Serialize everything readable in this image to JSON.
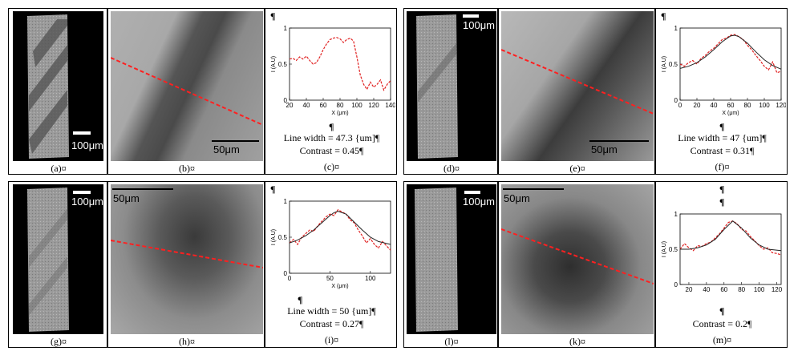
{
  "panels": {
    "a": {
      "caption": "(a)¤",
      "scale": "100μm"
    },
    "b": {
      "caption": "(b)¤",
      "scale": "50μm"
    },
    "c": {
      "caption": "(c)¤",
      "pilcrow1": "¶",
      "pilcrow2": "¶",
      "line1": "Line width = 47.3 {um]¶",
      "line2": "Contrast = 0.45¶"
    },
    "d": {
      "caption": "(d)¤",
      "scale": "100μm"
    },
    "e": {
      "caption": "(e)¤",
      "scale": "50μm"
    },
    "f": {
      "caption": "(f)¤",
      "pilcrow1": "¶",
      "pilcrow2": "¶",
      "line1": "Line width = 47 {um]¶",
      "line2": "Contrast = 0.31¶"
    },
    "g": {
      "caption": "(g)¤",
      "scale": "100μm"
    },
    "h": {
      "caption": "(h)¤",
      "scale": "50μm"
    },
    "i": {
      "caption": "(i)¤",
      "pilcrow1": "¶",
      "pilcrow2": "¶",
      "line1": "Line width = 50 {um]¶",
      "line2": "Contrast = 0.27¶"
    },
    "l": {
      "caption": "(l)¤",
      "scale": "100μm"
    },
    "k": {
      "caption": "(k)¤",
      "scale": "50μm"
    },
    "m": {
      "caption": "(m)¤",
      "pilcrow1": "¶",
      "pilcrow2": "¶",
      "pilcrow3": "¶",
      "line2": "Contrast = 0.2¶"
    }
  },
  "colors": {
    "profile": "#e02020",
    "fit": "#222222",
    "dash": "#ff2020"
  },
  "chart_data": [
    {
      "type": "line",
      "panel": "c",
      "xlabel": "X (μm)",
      "ylabel": "I (A.U)",
      "xticks": [
        20,
        40,
        60,
        80,
        100,
        120,
        140
      ],
      "yticks": [
        0,
        0.5,
        1
      ],
      "xlim": [
        20,
        140
      ],
      "ylim": [
        0,
        1
      ],
      "series": [
        {
          "values_x": [
            20,
            24,
            28,
            32,
            36,
            40,
            44,
            48,
            52,
            56,
            60,
            64,
            68,
            72,
            76,
            80,
            84,
            88,
            92,
            96,
            100,
            104,
            108,
            112,
            116,
            120,
            124,
            128,
            132,
            136,
            140
          ],
          "values_y": [
            0.57,
            0.58,
            0.55,
            0.6,
            0.57,
            0.61,
            0.55,
            0.5,
            0.52,
            0.6,
            0.7,
            0.78,
            0.84,
            0.86,
            0.87,
            0.85,
            0.8,
            0.84,
            0.86,
            0.82,
            0.6,
            0.35,
            0.22,
            0.15,
            0.25,
            0.18,
            0.22,
            0.28,
            0.14,
            0.22,
            0.27
          ]
        }
      ]
    },
    {
      "type": "line",
      "panel": "f",
      "xlabel": "X (μm)",
      "ylabel": "I (A.U)",
      "xticks": [
        0,
        20,
        40,
        60,
        80,
        100,
        120
      ],
      "yticks": [
        0,
        0.5,
        1
      ],
      "xlim": [
        0,
        120
      ],
      "ylim": [
        0,
        1
      ],
      "series": [
        {
          "values_x": [
            0,
            5,
            10,
            15,
            20,
            25,
            30,
            35,
            40,
            45,
            50,
            55,
            60,
            65,
            70,
            75,
            80,
            85,
            90,
            95,
            100,
            105,
            110,
            115,
            120
          ],
          "values_y": [
            0.5,
            0.47,
            0.52,
            0.55,
            0.5,
            0.58,
            0.62,
            0.68,
            0.72,
            0.78,
            0.84,
            0.86,
            0.9,
            0.91,
            0.88,
            0.84,
            0.76,
            0.7,
            0.62,
            0.55,
            0.47,
            0.42,
            0.53,
            0.38,
            0.4
          ]
        },
        {
          "values_x": [
            0,
            10,
            20,
            30,
            40,
            50,
            60,
            65,
            70,
            80,
            90,
            100,
            110,
            120
          ],
          "values_y": [
            0.44,
            0.47,
            0.52,
            0.6,
            0.7,
            0.81,
            0.89,
            0.9,
            0.88,
            0.79,
            0.67,
            0.56,
            0.48,
            0.43
          ]
        }
      ]
    },
    {
      "type": "line",
      "panel": "i",
      "xlabel": "X (μm)",
      "ylabel": "I (A.U)",
      "xticks": [
        0,
        50,
        100
      ],
      "yticks": [
        0,
        0.5,
        1
      ],
      "xlim": [
        0,
        125
      ],
      "ylim": [
        0,
        1
      ],
      "series": [
        {
          "values_x": [
            0,
            5,
            10,
            15,
            20,
            25,
            30,
            35,
            40,
            45,
            50,
            55,
            60,
            65,
            70,
            75,
            80,
            85,
            90,
            95,
            100,
            105,
            110,
            115,
            120,
            125
          ],
          "values_y": [
            0.42,
            0.47,
            0.4,
            0.5,
            0.55,
            0.6,
            0.58,
            0.66,
            0.72,
            0.78,
            0.82,
            0.8,
            0.88,
            0.85,
            0.82,
            0.74,
            0.7,
            0.6,
            0.52,
            0.42,
            0.48,
            0.4,
            0.35,
            0.44,
            0.38,
            0.32
          ]
        },
        {
          "values_x": [
            0,
            10,
            20,
            30,
            40,
            50,
            55,
            60,
            70,
            80,
            90,
            100,
            110,
            125
          ],
          "values_y": [
            0.42,
            0.46,
            0.52,
            0.6,
            0.7,
            0.8,
            0.84,
            0.86,
            0.82,
            0.71,
            0.6,
            0.5,
            0.44,
            0.4
          ]
        }
      ]
    },
    {
      "type": "line",
      "panel": "m",
      "xlabel": "",
      "ylabel": "I (A.U)",
      "xticks": [
        20,
        40,
        60,
        80,
        100,
        120
      ],
      "yticks": [
        0,
        0.5,
        1
      ],
      "xlim": [
        10,
        125
      ],
      "ylim": [
        0,
        1
      ],
      "series": [
        {
          "values_x": [
            10,
            15,
            20,
            25,
            30,
            35,
            40,
            45,
            50,
            55,
            60,
            65,
            70,
            75,
            80,
            85,
            90,
            95,
            100,
            105,
            110,
            115,
            120,
            125
          ],
          "values_y": [
            0.5,
            0.58,
            0.52,
            0.48,
            0.55,
            0.54,
            0.58,
            0.6,
            0.66,
            0.72,
            0.8,
            0.88,
            0.9,
            0.86,
            0.78,
            0.76,
            0.68,
            0.62,
            0.55,
            0.5,
            0.52,
            0.45,
            0.44,
            0.42
          ]
        },
        {
          "values_x": [
            10,
            20,
            30,
            40,
            50,
            60,
            70,
            80,
            90,
            100,
            110,
            125
          ],
          "values_y": [
            0.5,
            0.5,
            0.52,
            0.56,
            0.64,
            0.78,
            0.9,
            0.8,
            0.66,
            0.56,
            0.5,
            0.48
          ]
        }
      ]
    }
  ]
}
